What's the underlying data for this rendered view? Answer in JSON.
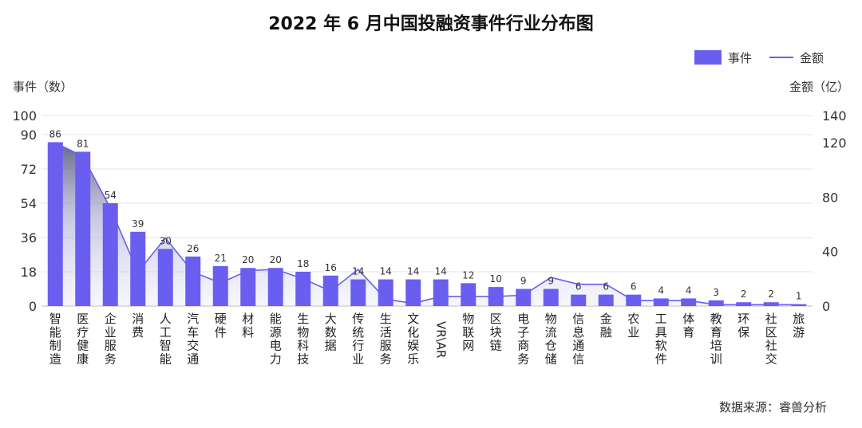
{
  "chart_data": {
    "type": "bar",
    "title": "2022 年 6 月中国投融资事件行业分布图",
    "ylabel": "事件（数）",
    "ylabel_right": "金额（亿）",
    "source": "数据来源：睿兽分析",
    "categories": [
      "智能制造",
      "医疗健康",
      "企业服务",
      "消费",
      "人工智能",
      "汽车交通",
      "硬件",
      "材料",
      "能源电力",
      "生物科技",
      "大数据",
      "传统行业",
      "生活服务",
      "文化娱乐",
      "VR\\AR",
      "物联网",
      "区块链",
      "电子商务",
      "物流仓储",
      "信息通信",
      "金融",
      "农业",
      "工具软件",
      "体育",
      "教育培训",
      "环保",
      "社区社交",
      "旅游"
    ],
    "series": [
      {
        "name": "事件",
        "type": "bar",
        "axis": "left",
        "values": [
          86,
          81,
          54,
          39,
          30,
          26,
          21,
          20,
          20,
          18,
          16,
          14,
          14,
          14,
          14,
          12,
          10,
          9,
          9,
          6,
          6,
          6,
          4,
          4,
          3,
          2,
          2,
          1
        ]
      },
      {
        "name": "金额",
        "type": "area-line",
        "axis": "right",
        "values": [
          120,
          110,
          72,
          25,
          50,
          25,
          17,
          26,
          27,
          20,
          11,
          27,
          5,
          2,
          7,
          7,
          7,
          8,
          21,
          16,
          16,
          4,
          4,
          4,
          1,
          1,
          1,
          1
        ]
      }
    ],
    "ylim": [
      0,
      100
    ],
    "yticks": [
      0,
      18,
      36,
      54,
      72,
      90,
      100
    ],
    "ylim_right": [
      0,
      140
    ],
    "yticks_right": [
      0,
      40,
      80,
      120,
      140
    ],
    "legend_position": "top-right",
    "grid": true,
    "colors": {
      "bar": "#6a5ef0",
      "line": "#6a5ef0",
      "grid": "#e6e6e6"
    }
  }
}
